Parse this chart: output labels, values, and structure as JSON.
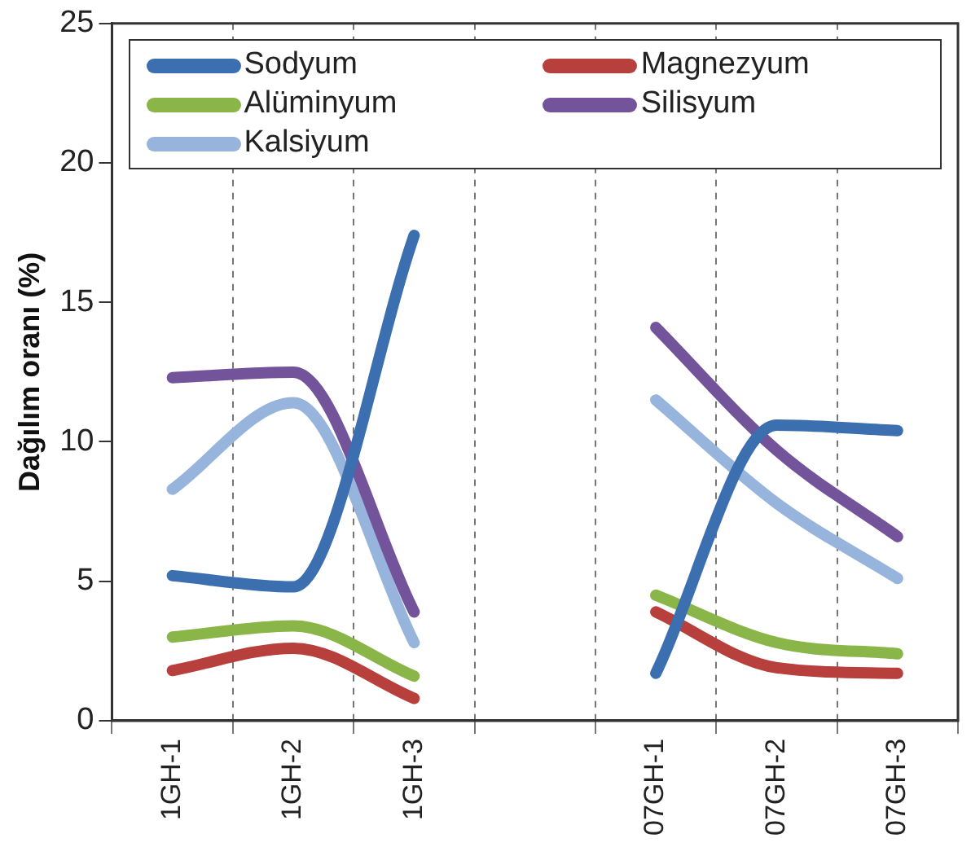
{
  "chart_data": {
    "type": "line",
    "ylabel": "Dağılım oranı (%)",
    "categories": [
      "1GH-1",
      "1GH-2",
      "1GH-3",
      null,
      "07GH-1",
      "07GH-2",
      "07GH-3"
    ],
    "series": [
      {
        "name": "Sodyum",
        "color": "#3b6fb0",
        "values": [
          5.2,
          4.8,
          17.4,
          null,
          1.7,
          10.6,
          10.4
        ]
      },
      {
        "name": "Magnezyum",
        "color": "#b8403c",
        "values": [
          1.8,
          2.6,
          0.8,
          null,
          3.9,
          1.9,
          1.7
        ]
      },
      {
        "name": "Alüminyum",
        "color": "#8ab548",
        "values": [
          3.0,
          3.4,
          1.6,
          null,
          4.5,
          2.8,
          2.4
        ]
      },
      {
        "name": "Silisyum",
        "color": "#73549a",
        "values": [
          12.3,
          12.5,
          3.9,
          null,
          14.1,
          9.7,
          6.6
        ]
      },
      {
        "name": "Kalsiyum",
        "color": "#97b5dc",
        "values": [
          8.3,
          11.4,
          2.8,
          null,
          11.5,
          7.8,
          5.1
        ]
      }
    ],
    "ylim": [
      0,
      25
    ],
    "yticks": [
      0,
      5,
      10,
      15,
      20,
      25
    ],
    "grid": "x",
    "legend": "top",
    "marker": "none",
    "line_style": "solid"
  }
}
